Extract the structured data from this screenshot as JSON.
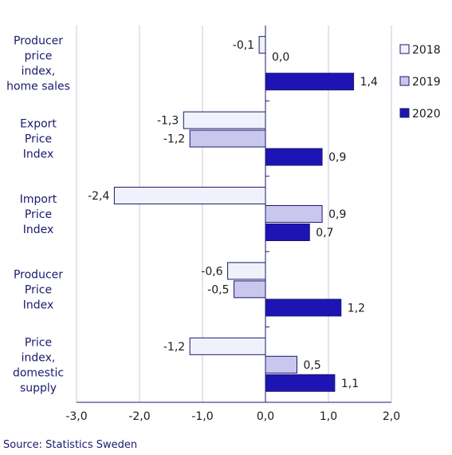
{
  "chart_data": {
    "type": "bar",
    "orientation": "horizontal",
    "categories": [
      [
        "Producer",
        "price",
        "index,",
        "home sales"
      ],
      [
        "Export",
        "Price",
        "Index"
      ],
      [
        "Import",
        "Price",
        "Index"
      ],
      [
        "Producer",
        "Price",
        "Index"
      ],
      [
        "Price",
        "index,",
        "domestic",
        "supply"
      ]
    ],
    "series": [
      {
        "name": "2018",
        "color": "#f1f1fb",
        "values": [
          -0.1,
          -1.3,
          -2.4,
          -0.6,
          -1.2
        ],
        "labels": [
          "-0,1",
          "-1,3",
          "-2,4",
          "-0,6",
          "-1,2"
        ]
      },
      {
        "name": "2019",
        "color": "#c9c7ee",
        "values": [
          0.0,
          -1.2,
          0.9,
          -0.5,
          0.5
        ],
        "labels": [
          "0,0",
          "-1,2",
          "0,9",
          "-0,5",
          "0,5"
        ]
      },
      {
        "name": "2020",
        "color": "#1e14b4",
        "values": [
          1.4,
          0.9,
          0.7,
          1.2,
          1.1
        ],
        "labels": [
          "1,4",
          "0,9",
          "0,7",
          "1,2",
          "1,1"
        ]
      }
    ],
    "xlim": [
      -3.0,
      2.0
    ],
    "xticks": [
      -3.0,
      -2.0,
      -1.0,
      0.0,
      1.0,
      2.0
    ],
    "xtick_labels": [
      "-3,0",
      "-2,0",
      "-1,0",
      "0,0",
      "1,0",
      "2,0"
    ],
    "grid": "vertical",
    "legend_position": "right"
  },
  "source": "Source: Statistics Sweden"
}
